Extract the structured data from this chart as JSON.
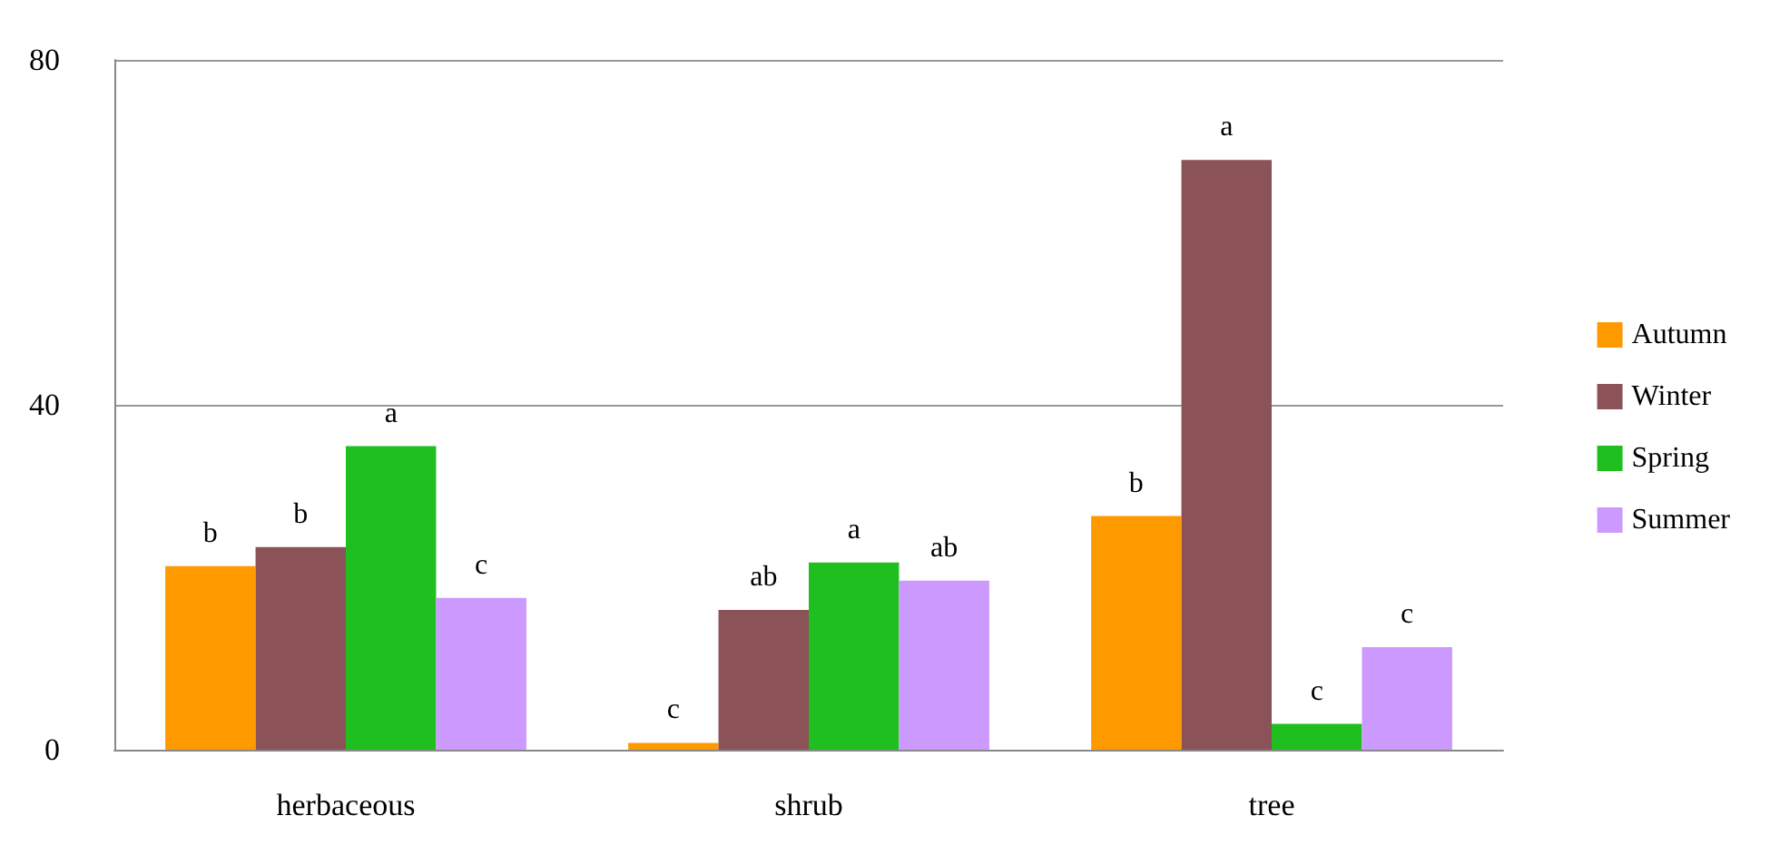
{
  "chart_data": {
    "type": "bar",
    "categories": [
      "herbaceous",
      "shrub",
      "tree"
    ],
    "series": [
      {
        "name": "Autumn",
        "color": "#ff9900",
        "values": [
          21.3,
          0.8,
          27.1
        ],
        "value_labels": [
          "b",
          "c",
          "b"
        ]
      },
      {
        "name": "Winter",
        "color": "#8b5257",
        "values": [
          23.5,
          16.2,
          68.4
        ],
        "value_labels": [
          "b",
          "ab",
          "a"
        ]
      },
      {
        "name": "Spring",
        "color": "#1fbf1f",
        "values": [
          35.2,
          21.7,
          3.0
        ],
        "value_labels": [
          "a",
          "a",
          "c"
        ]
      },
      {
        "name": "Summer",
        "color": "#cc99ff",
        "values": [
          17.6,
          19.6,
          11.9
        ],
        "value_labels": [
          "c",
          "ab",
          "c"
        ]
      }
    ],
    "ylim": [
      0,
      80
    ],
    "yticks": [
      0,
      40,
      80
    ],
    "grid": "y",
    "legend": "right"
  }
}
